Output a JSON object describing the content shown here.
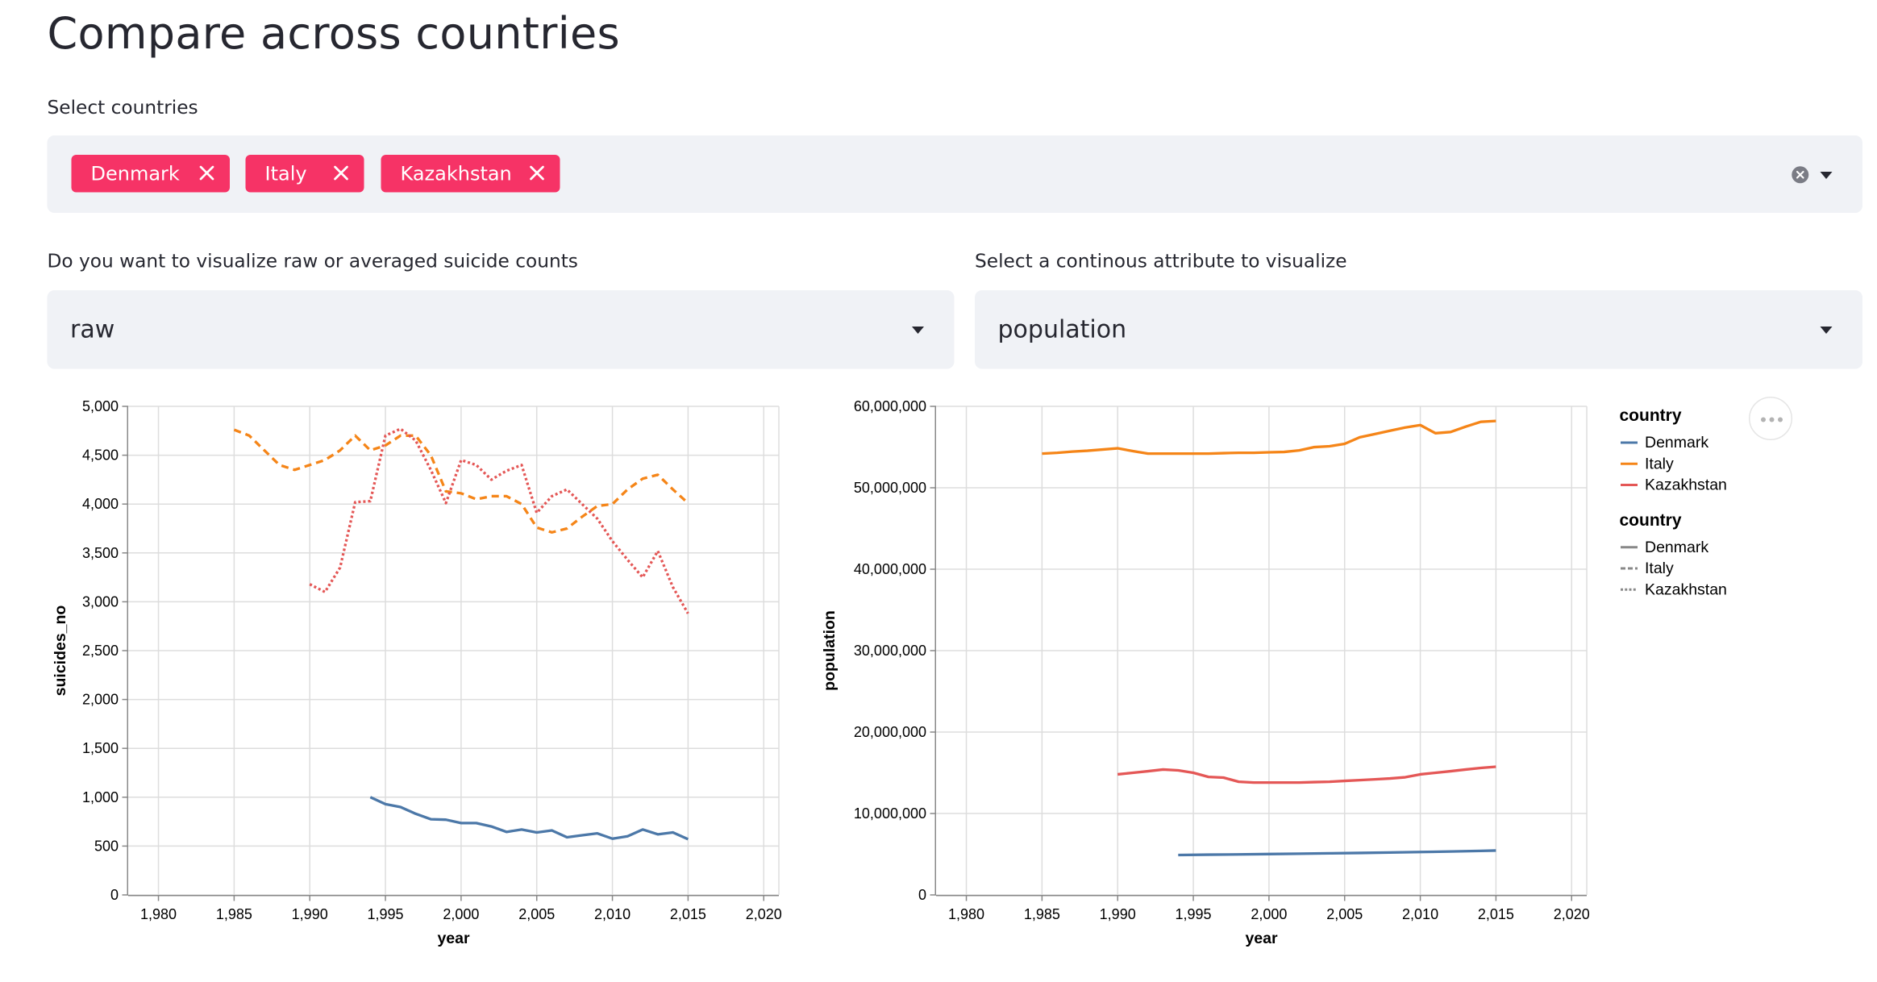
{
  "page": {
    "title": "Compare across countries"
  },
  "country_select": {
    "label": "Select countries",
    "tags": [
      "Denmark",
      "Italy",
      "Kazakhstan"
    ]
  },
  "mode_select": {
    "label": "Do you want to visualize raw or averaged suicide counts",
    "value": "raw"
  },
  "attribute_select": {
    "label": "Select a continous attribute to visualize",
    "value": "population"
  },
  "colors": {
    "Denmark": "#4c78a8",
    "Italy": "#f58518",
    "Kazakhstan": "#e45756",
    "tag": "#f63366",
    "panel": "#f0f2f6"
  },
  "icons": {
    "tag_remove": "close-icon",
    "clear": "clear-circle-icon",
    "dropdown": "caret-down-icon",
    "menu": "more-horizontal-icon"
  },
  "chart_data": [
    {
      "type": "line",
      "xlabel": "year",
      "ylabel": "suicides_no",
      "xlim": [
        1978,
        2021
      ],
      "ylim": [
        0,
        5000
      ],
      "xticks": [
        1980,
        1985,
        1990,
        1995,
        2000,
        2005,
        2010,
        2015,
        2020
      ],
      "yticks": [
        0,
        500,
        1000,
        1500,
        2000,
        2500,
        3000,
        3500,
        4000,
        4500,
        5000
      ],
      "grid": true,
      "series": [
        {
          "name": "Denmark",
          "dash": "solid",
          "x": [
            1994,
            1995,
            1996,
            1997,
            1998,
            1999,
            2000,
            2001,
            2002,
            2003,
            2004,
            2005,
            2006,
            2007,
            2008,
            2009,
            2010,
            2011,
            2012,
            2013,
            2014,
            2015
          ],
          "y": [
            1000,
            930,
            900,
            830,
            775,
            770,
            735,
            735,
            700,
            645,
            670,
            640,
            660,
            590,
            610,
            630,
            575,
            600,
            670,
            620,
            640,
            570
          ]
        },
        {
          "name": "Italy",
          "dash": "dashed",
          "x": [
            1985,
            1986,
            1987,
            1988,
            1989,
            1990,
            1991,
            1992,
            1993,
            1994,
            1995,
            1996,
            1997,
            1998,
            1999,
            2000,
            2001,
            2002,
            2003,
            2004,
            2005,
            2006,
            2007,
            2008,
            2009,
            2010,
            2011,
            2012,
            2013,
            2014,
            2015
          ],
          "y": [
            4760,
            4700,
            4550,
            4400,
            4350,
            4400,
            4450,
            4550,
            4700,
            4550,
            4600,
            4700,
            4700,
            4500,
            4130,
            4110,
            4050,
            4080,
            4080,
            4000,
            3760,
            3710,
            3750,
            3870,
            3980,
            4000,
            4150,
            4260,
            4300,
            4150,
            4010
          ]
        },
        {
          "name": "Kazakhstan",
          "dash": "dotted",
          "x": [
            1990,
            1991,
            1992,
            1993,
            1994,
            1995,
            1996,
            1997,
            1998,
            1999,
            2000,
            2001,
            2002,
            2003,
            2004,
            2005,
            2006,
            2007,
            2008,
            2009,
            2010,
            2011,
            2012,
            2013,
            2014,
            2015
          ],
          "y": [
            3180,
            3100,
            3350,
            4020,
            4030,
            4700,
            4770,
            4650,
            4350,
            4010,
            4450,
            4400,
            4250,
            4340,
            4400,
            3910,
            4080,
            4150,
            4000,
            3850,
            3620,
            3430,
            3250,
            3520,
            3150,
            2880
          ]
        }
      ]
    },
    {
      "type": "line",
      "xlabel": "year",
      "ylabel": "population",
      "xlim": [
        1978,
        2021
      ],
      "ylim": [
        0,
        60000000
      ],
      "xticks": [
        1980,
        1985,
        1990,
        1995,
        2000,
        2005,
        2010,
        2015,
        2020
      ],
      "yticks": [
        0,
        10000000,
        20000000,
        30000000,
        40000000,
        50000000,
        60000000
      ],
      "grid": true,
      "series": [
        {
          "name": "Denmark",
          "dash": "solid",
          "x": [
            1994,
            1996,
            1998,
            2000,
            2002,
            2004,
            2006,
            2008,
            2010,
            2012,
            2014,
            2015
          ],
          "y": [
            4900000,
            4950000,
            4980000,
            5020000,
            5070000,
            5110000,
            5150000,
            5210000,
            5270000,
            5330000,
            5400000,
            5450000
          ]
        },
        {
          "name": "Italy",
          "dash": "solid",
          "x": [
            1985,
            1986,
            1987,
            1988,
            1989,
            1990,
            1991,
            1992,
            1993,
            1994,
            1995,
            1996,
            1997,
            1998,
            1999,
            2000,
            2001,
            2002,
            2003,
            2004,
            2005,
            2006,
            2007,
            2008,
            2009,
            2010,
            2011,
            2012,
            2013,
            2014,
            2015
          ],
          "y": [
            54200000,
            54300000,
            54450000,
            54550000,
            54700000,
            54850000,
            54500000,
            54200000,
            54200000,
            54200000,
            54200000,
            54200000,
            54250000,
            54300000,
            54300000,
            54350000,
            54400000,
            54600000,
            55000000,
            55100000,
            55400000,
            56200000,
            56600000,
            57000000,
            57400000,
            57700000,
            56700000,
            56850000,
            57500000,
            58100000,
            58200000
          ]
        },
        {
          "name": "Kazakhstan",
          "dash": "solid",
          "x": [
            1990,
            1991,
            1992,
            1993,
            1994,
            1995,
            1996,
            1997,
            1998,
            1999,
            2000,
            2001,
            2002,
            2003,
            2004,
            2005,
            2006,
            2007,
            2008,
            2009,
            2010,
            2011,
            2012,
            2013,
            2014,
            2015
          ],
          "y": [
            14800000,
            15000000,
            15200000,
            15400000,
            15300000,
            15000000,
            14500000,
            14400000,
            13900000,
            13800000,
            13800000,
            13800000,
            13800000,
            13850000,
            13900000,
            14000000,
            14100000,
            14200000,
            14300000,
            14450000,
            14800000,
            15000000,
            15200000,
            15400000,
            15600000,
            15750000
          ]
        }
      ],
      "legends": [
        {
          "title": "country",
          "kind": "color",
          "items": [
            "Denmark",
            "Italy",
            "Kazakhstan"
          ]
        },
        {
          "title": "country",
          "kind": "dash",
          "items": [
            "Denmark",
            "Italy",
            "Kazakhstan"
          ]
        }
      ]
    }
  ]
}
